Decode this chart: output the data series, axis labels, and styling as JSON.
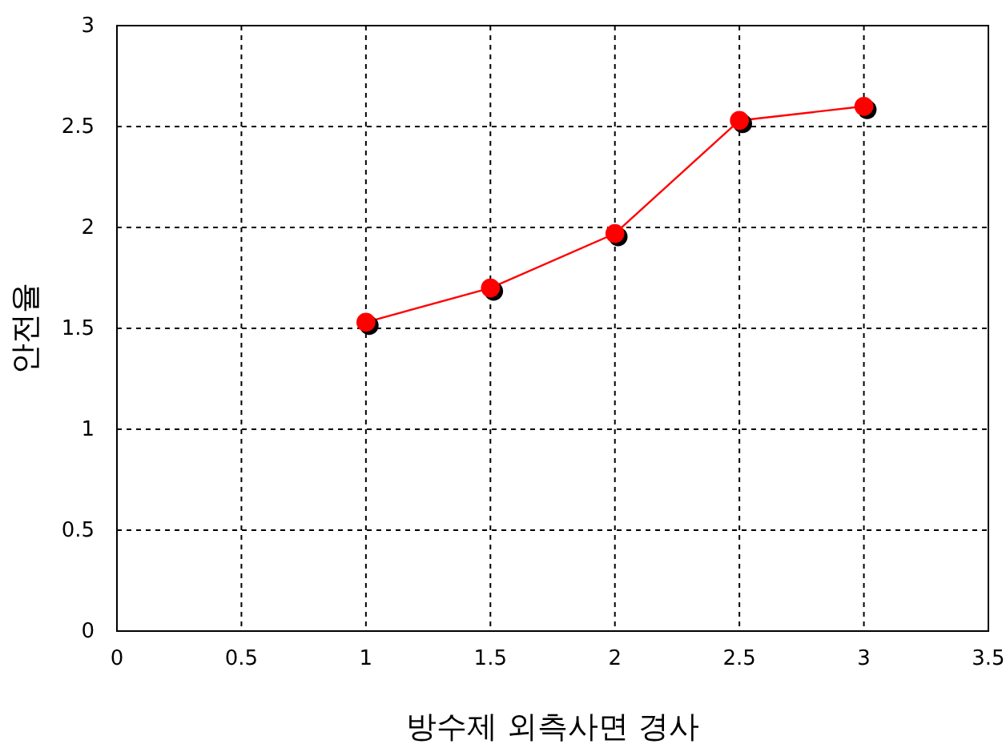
{
  "chart_data": {
    "type": "line",
    "xlabel": "방수제 외측사면 경사",
    "ylabel": "안전율",
    "x": [
      1,
      1.5,
      2,
      2.5,
      3
    ],
    "series": [
      {
        "color": "#ff0000",
        "values": [
          1.53,
          1.7,
          1.97,
          2.53,
          2.6
        ]
      }
    ],
    "xlim": [
      0,
      3.5
    ],
    "xticks": [
      0,
      0.5,
      1,
      1.5,
      2,
      2.5,
      3,
      3.5
    ],
    "ylim": [
      0,
      3
    ],
    "yticks": [
      0,
      0.5,
      1,
      1.5,
      2,
      2.5,
      3
    ],
    "grid": true,
    "marker": "circle",
    "line_style": "solid"
  }
}
